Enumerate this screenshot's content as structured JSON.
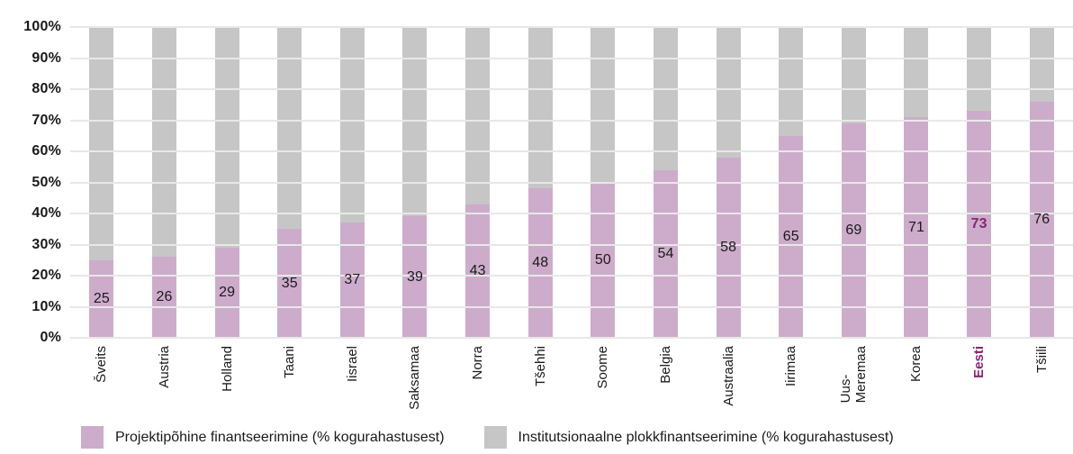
{
  "chart_data": {
    "type": "bar",
    "stacked": true,
    "orientation": "vertical",
    "categories": [
      "Šveits",
      "Austria",
      "Holland",
      "Taani",
      "Iisrael",
      "Saksamaa",
      "Norra",
      "Tšehhi",
      "Soome",
      "Belgia",
      "Austraalia",
      "Iirimaa",
      "Uus-\nMeremaa",
      "Korea",
      "Eesti",
      "Tšiili"
    ],
    "series": [
      {
        "name": "Projektipõhine finantseerimine (% kogurahastusest)",
        "values": [
          25,
          26,
          29,
          35,
          37,
          39,
          43,
          48,
          50,
          54,
          58,
          65,
          69,
          71,
          73,
          76
        ],
        "color": "#cdaccb",
        "labels_visible": true
      },
      {
        "name": "Institutsionaalne plokkfinantseerimine (% kogurahastusest)",
        "values": [
          75,
          74,
          71,
          65,
          63,
          61,
          57,
          52,
          50,
          46,
          42,
          35,
          31,
          29,
          27,
          24
        ],
        "color": "#c6c6c6",
        "labels_visible": false
      }
    ],
    "title": "",
    "xlabel": "",
    "ylabel": "",
    "ylim": [
      0,
      100
    ],
    "ytick_labels": [
      "0%",
      "10%",
      "20%",
      "30%",
      "40%",
      "50%",
      "60%",
      "70%",
      "80%",
      "90%",
      "100%"
    ],
    "grid": true,
    "gridline_color": "#e8e8e8",
    "legend_position": "bottom",
    "highlight": {
      "category": "Eesti",
      "index": 14,
      "value_label": "73",
      "color": "#8b2376"
    }
  }
}
